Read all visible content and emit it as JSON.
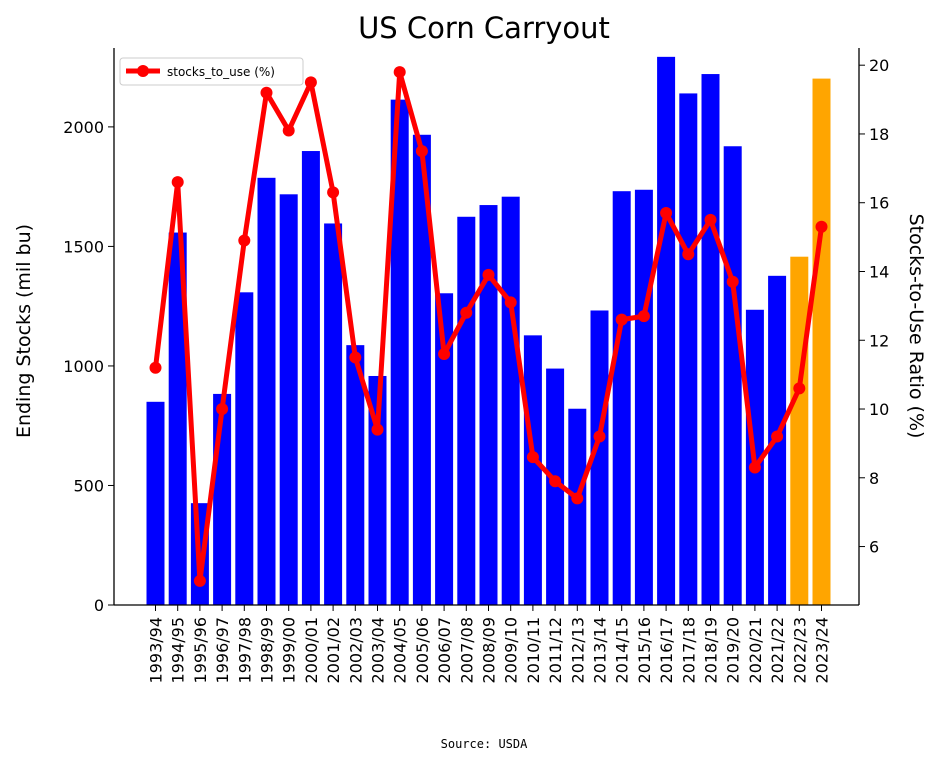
{
  "chart_data": {
    "type": "bar",
    "title": "US Corn Carryout",
    "xlabel": "",
    "ylabel": "Ending Stocks (mil bu)",
    "y2label": "Stocks-to-Use Ratio (%)",
    "source": "Source: USDA",
    "categories": [
      "1993/94",
      "1994/95",
      "1995/96",
      "1996/97",
      "1997/98",
      "1998/99",
      "1999/00",
      "2000/01",
      "2001/02",
      "2002/03",
      "2003/04",
      "2004/05",
      "2005/06",
      "2006/07",
      "2007/08",
      "2008/09",
      "2009/10",
      "2010/11",
      "2011/12",
      "2012/13",
      "2013/14",
      "2014/15",
      "2015/16",
      "2016/17",
      "2017/18",
      "2018/19",
      "2019/20",
      "2020/21",
      "2021/22",
      "2022/23",
      "2023/24"
    ],
    "series": [
      {
        "values": [
          850,
          1558,
          426,
          883,
          1308,
          1787,
          1718,
          1899,
          1596,
          1087,
          958,
          2114,
          1967,
          1304,
          1624,
          1673,
          1708,
          1128,
          989,
          821,
          1232,
          1731,
          1737,
          2293,
          2140,
          2221,
          1919,
          1235,
          1377,
          1457,
          2202
        ],
        "axis": "left",
        "kind": "bar"
      },
      {
        "name": "stocks_to_use (%)",
        "values": [
          11.2,
          16.6,
          5.0,
          10.0,
          14.9,
          19.2,
          18.1,
          19.5,
          16.3,
          11.5,
          9.4,
          19.8,
          17.5,
          11.6,
          12.8,
          13.9,
          13.1,
          8.6,
          7.9,
          7.4,
          9.2,
          12.6,
          12.7,
          15.7,
          14.5,
          15.5,
          13.7,
          8.3,
          9.2,
          10.6,
          15.3
        ],
        "axis": "right",
        "kind": "line"
      }
    ],
    "ylim": [
      0,
      2330
    ],
    "y2lim": [
      4.3,
      20.5
    ],
    "yticks": [
      0,
      500,
      1000,
      1500,
      2000
    ],
    "y2ticks": [
      6,
      8,
      10,
      12,
      14,
      16,
      18,
      20
    ],
    "colors": {
      "bar": "#0000ff",
      "bar_projected": "#ffa500",
      "line": "#ff0000"
    },
    "projected_categories": [
      "2022/23",
      "2023/24"
    ],
    "legend": {
      "placement": "top-left"
    },
    "grid": false
  }
}
